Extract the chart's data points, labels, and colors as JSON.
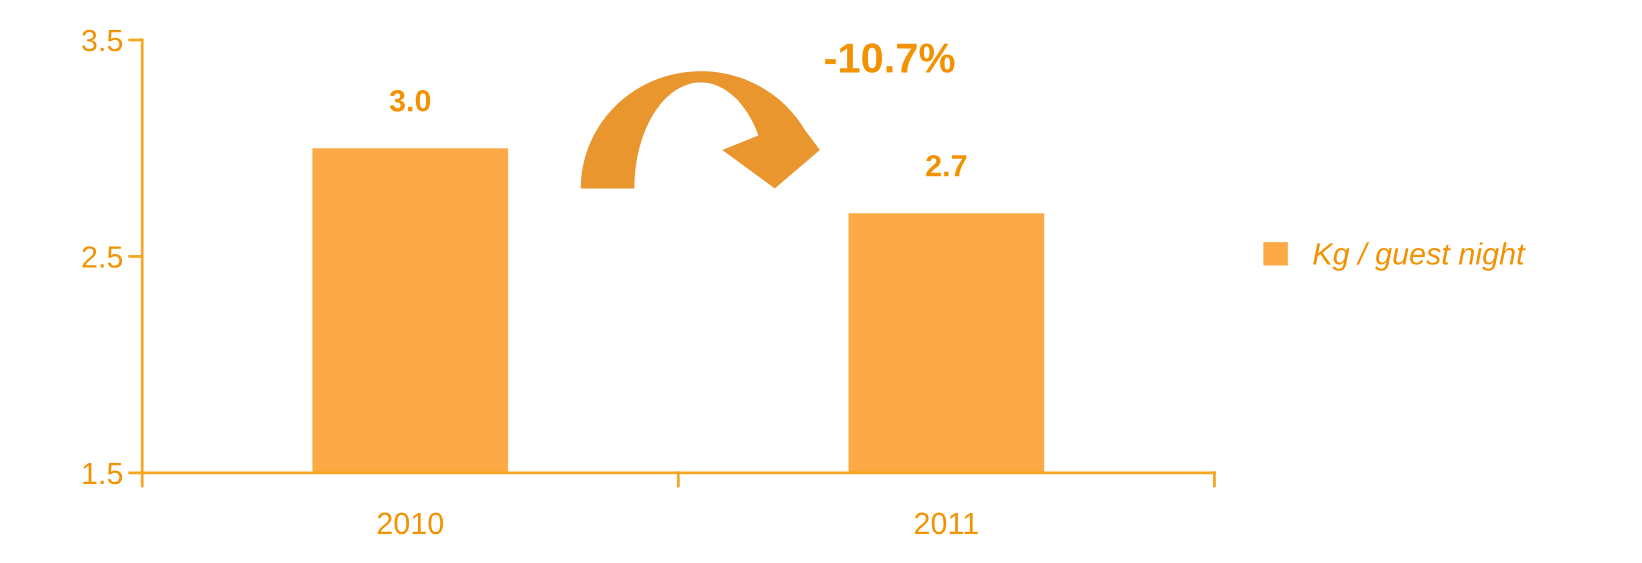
{
  "chart_data": {
    "type": "bar",
    "categories": [
      "2010",
      "2011"
    ],
    "series": [
      {
        "name": "Kg / guest night",
        "color": "#fbaa45",
        "values": [
          3.0,
          2.7
        ],
        "value_labels": [
          "3.0",
          "2.7"
        ]
      }
    ],
    "ylim": [
      1.5,
      3.5
    ],
    "yticks": [
      1.5,
      2.5,
      3.5
    ],
    "grid": false,
    "legend": "right",
    "annotations": [
      "-10.7%"
    ]
  }
}
